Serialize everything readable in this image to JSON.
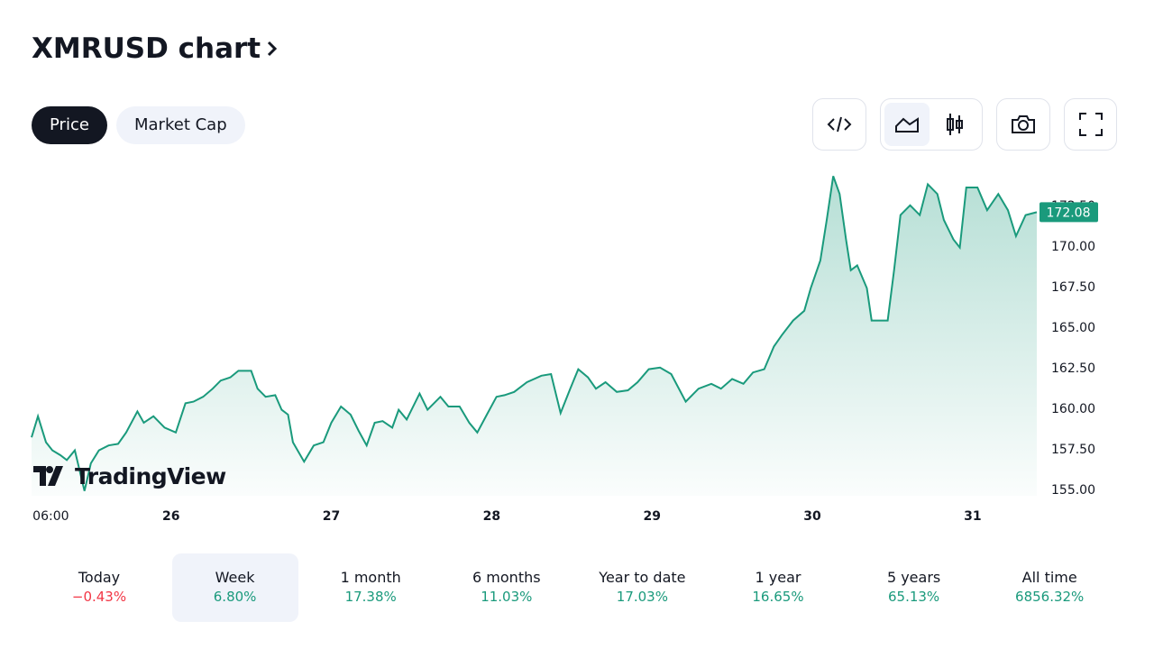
{
  "header": {
    "title": "XMRUSD chart"
  },
  "tabs": [
    "Price",
    "Market Cap"
  ],
  "chart_data": {
    "type": "line",
    "series": [
      {
        "color": "#1a9a7c",
        "x": [
          25.13,
          25.17,
          25.22,
          25.26,
          25.31,
          25.35,
          25.4,
          25.46,
          25.5,
          25.55,
          25.61,
          25.67,
          25.72,
          25.79,
          25.83,
          25.89,
          25.96,
          26.03,
          26.09,
          26.14,
          26.2,
          26.26,
          26.31,
          26.37,
          26.42,
          26.5,
          26.54,
          26.59,
          26.65,
          26.69,
          26.73,
          26.76,
          26.83,
          26.89,
          26.95,
          27.0,
          27.06,
          27.12,
          27.17,
          27.22,
          27.27,
          27.32,
          27.38,
          27.42,
          27.47,
          27.55,
          27.6,
          27.68,
          27.73,
          27.8,
          27.86,
          27.91,
          27.97,
          28.03,
          28.08,
          28.14,
          28.22,
          28.31,
          28.37,
          28.43,
          28.49,
          28.54,
          28.6,
          28.65,
          28.71,
          28.78,
          28.85,
          28.91,
          28.98,
          29.05,
          29.12,
          29.21,
          29.29,
          29.37,
          29.43,
          29.5,
          29.57,
          29.63,
          29.7,
          29.76,
          29.81,
          29.88,
          29.95,
          29.99,
          30.05,
          30.09,
          30.13,
          30.17,
          30.21,
          30.24,
          30.28,
          30.34,
          30.37,
          30.43,
          30.47,
          30.51,
          30.55,
          30.61,
          30.67,
          30.72,
          30.78,
          30.82,
          30.88,
          30.92,
          30.96,
          31.03,
          31.09,
          31.16,
          31.22,
          31.27,
          31.33,
          31.4
        ],
        "values": [
          158.2,
          159.5,
          157.9,
          157.4,
          157.1,
          156.8,
          157.4,
          154.9,
          156.6,
          157.4,
          157.7,
          157.8,
          158.5,
          159.8,
          159.1,
          159.5,
          158.8,
          158.5,
          160.3,
          160.4,
          160.7,
          161.2,
          161.7,
          161.9,
          162.3,
          162.3,
          161.2,
          160.7,
          160.8,
          159.9,
          159.6,
          157.9,
          156.7,
          157.7,
          157.9,
          159.1,
          160.1,
          159.6,
          158.6,
          157.7,
          159.1,
          159.2,
          158.8,
          159.9,
          159.3,
          160.9,
          159.9,
          160.7,
          160.1,
          160.1,
          159.1,
          158.5,
          159.6,
          160.7,
          160.8,
          161.0,
          161.6,
          162.0,
          162.1,
          159.7,
          161.2,
          162.4,
          161.9,
          161.2,
          161.6,
          161.0,
          161.1,
          161.6,
          162.4,
          162.5,
          162.1,
          160.4,
          161.2,
          161.5,
          161.2,
          161.8,
          161.5,
          162.2,
          162.4,
          163.8,
          164.5,
          165.4,
          166.0,
          167.4,
          169.1,
          171.6,
          174.3,
          173.2,
          170.4,
          168.5,
          168.8,
          167.4,
          165.4,
          165.4,
          165.4,
          168.5,
          171.9,
          172.5,
          171.9,
          173.8,
          173.2,
          171.6,
          170.4,
          169.9,
          173.6,
          173.6,
          172.2,
          173.2,
          172.2,
          170.6,
          171.9,
          172.08
        ]
      }
    ],
    "current_price": 172.08,
    "xlim": [
      25.13,
      31.4
    ],
    "xticks": [
      {
        "value": 25.25,
        "label": "06:00"
      },
      26,
      27,
      28,
      29,
      30,
      31
    ],
    "ylim": [
      154.6,
      174.6
    ],
    "yticks": [
      {
        "value": 155,
        "label": "155.00"
      },
      {
        "value": 157.5,
        "label": "157.50"
      },
      {
        "value": 160,
        "label": "160.00"
      },
      {
        "value": 162.5,
        "label": "162.50"
      },
      {
        "value": 165,
        "label": "165.00"
      },
      {
        "value": 167.5,
        "label": "167.50"
      },
      {
        "value": 170,
        "label": "170.00"
      },
      {
        "value": 172.5,
        "label": "172.50"
      }
    ],
    "watermark": "TradingView"
  },
  "periods": [
    {
      "label": "Today",
      "change": "−0.43%"
    },
    {
      "label": "Week",
      "change": "6.80%"
    },
    {
      "label": "1 month",
      "change": "17.38%"
    },
    {
      "label": "6 months",
      "change": "11.03%"
    },
    {
      "label": "Year to date",
      "change": "17.03%"
    },
    {
      "label": "1 year",
      "change": "16.65%"
    },
    {
      "label": "5 years",
      "change": "65.13%"
    },
    {
      "label": "All time",
      "change": "6856.32%"
    }
  ]
}
